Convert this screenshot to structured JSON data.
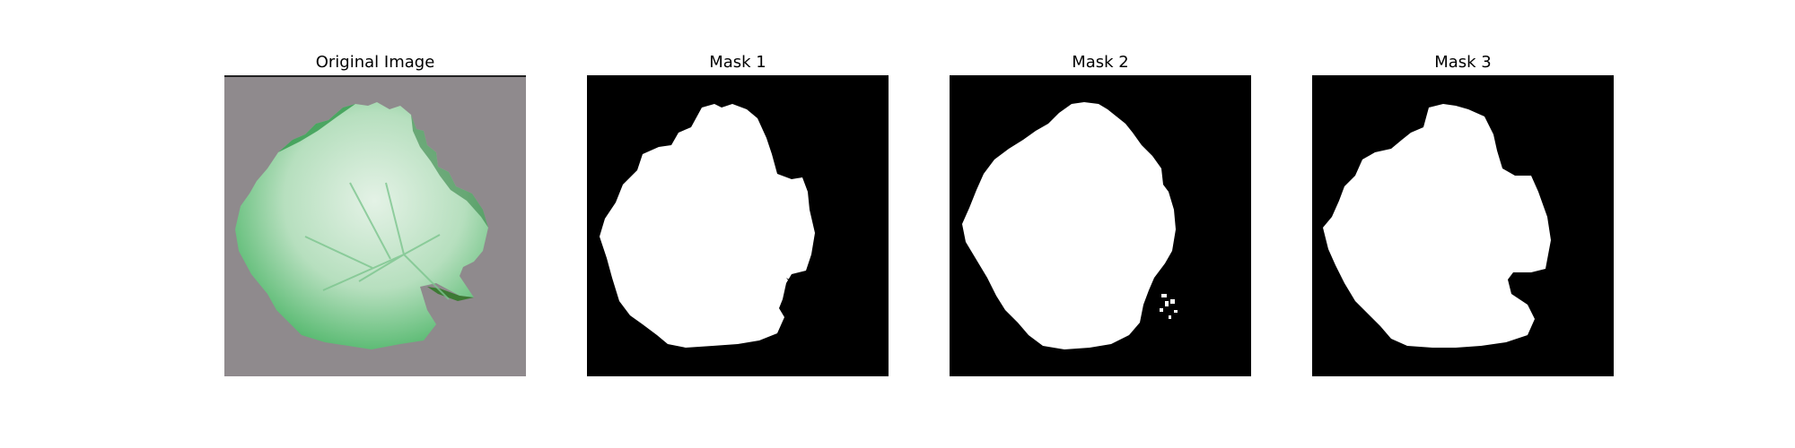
{
  "figure": {
    "panels": [
      {
        "title": "Original Image",
        "kind": "photo"
      },
      {
        "title": "Mask 1",
        "kind": "mask"
      },
      {
        "title": "Mask 2",
        "kind": "mask"
      },
      {
        "title": "Mask 3",
        "kind": "mask"
      }
    ]
  },
  "colors": {
    "background": "#ffffff",
    "photo_background": "#8f8a8d",
    "leaf_light": "#cfe8d4",
    "leaf_mid": "#8fd09c",
    "leaf_dark": "#3fae5a",
    "mask_background": "#000000",
    "mask_foreground": "#ffffff"
  }
}
